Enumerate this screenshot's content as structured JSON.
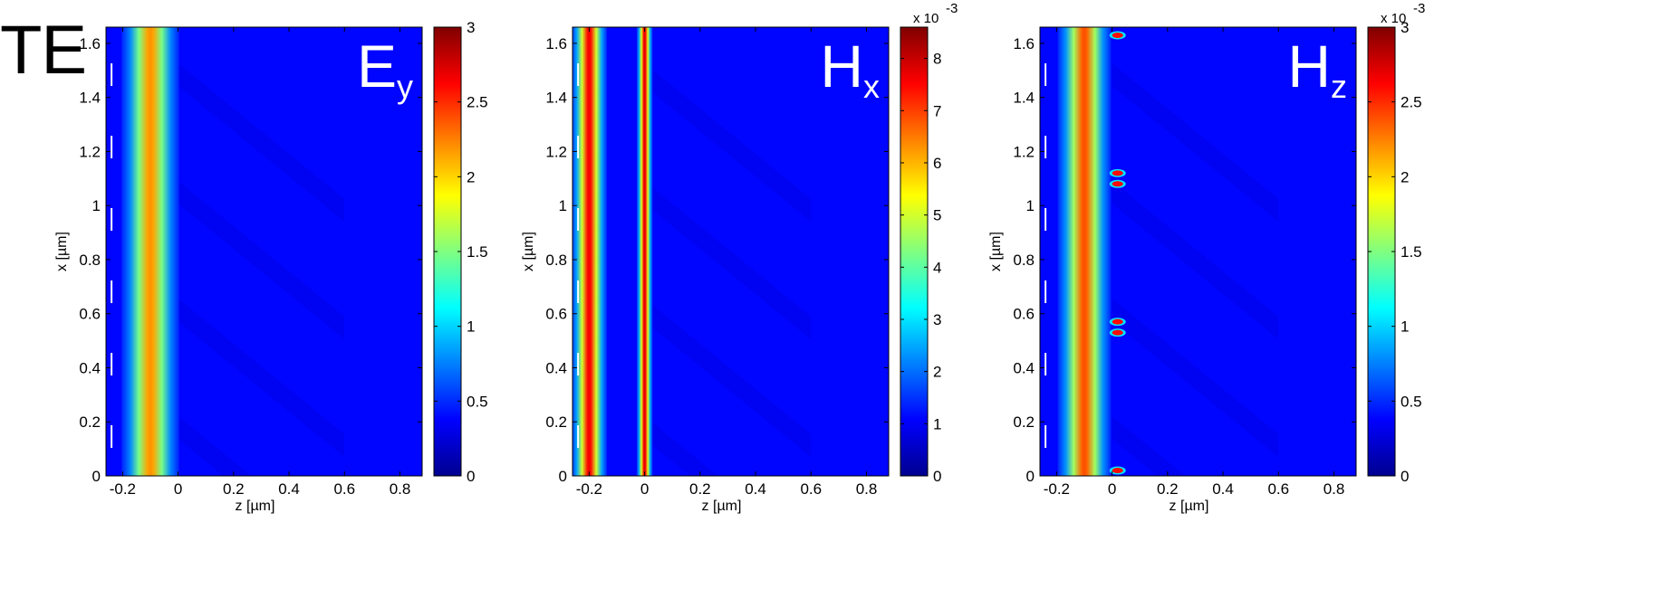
{
  "figure_label": "TE",
  "colormap": [
    "#00008F",
    "#0000FF",
    "#0080FF",
    "#00FFFF",
    "#80FF80",
    "#FFFF00",
    "#FF8000",
    "#FF0000",
    "#800000"
  ],
  "chart_data": [
    {
      "type": "heatmap",
      "field_main": "E",
      "field_sub": "y",
      "xlabel": "z [µm]",
      "ylabel": "x [µm]",
      "xlim": [
        -0.26,
        0.88
      ],
      "ylim": [
        0,
        1.66
      ],
      "xticks": [
        -0.2,
        0,
        0.2,
        0.4,
        0.6,
        0.8
      ],
      "xtick_labels": [
        "-0.2",
        "0",
        "0.2",
        "0.4",
        "0.6",
        "0.8"
      ],
      "yticks": [
        0,
        0.2,
        0.4,
        0.6,
        0.8,
        1,
        1.2,
        1.4,
        1.6
      ],
      "ytick_labels": [
        "0",
        "0.2",
        "0.4",
        "0.6",
        "0.8",
        "1",
        "1.2",
        "1.4",
        "1.6"
      ],
      "colorbar": {
        "min": 0,
        "max": 3,
        "ticks": [
          0,
          0.5,
          1,
          1.5,
          2,
          2.5,
          3
        ],
        "tick_labels": [
          "0",
          "0.5",
          "1",
          "1.5",
          "2",
          "2.5",
          "3"
        ],
        "exponent": ""
      },
      "bands": [
        {
          "z_center": -0.1,
          "width": 0.065,
          "value": 2.2
        }
      ],
      "hotspots": []
    },
    {
      "type": "heatmap",
      "field_main": "H",
      "field_sub": "x",
      "xlabel": "z [µm]",
      "ylabel": "x [µm]",
      "xlim": [
        -0.26,
        0.88
      ],
      "ylim": [
        0,
        1.66
      ],
      "xticks": [
        -0.2,
        0,
        0.2,
        0.4,
        0.6,
        0.8
      ],
      "xtick_labels": [
        "-0.2",
        "0",
        "0.2",
        "0.4",
        "0.6",
        "0.8"
      ],
      "yticks": [
        0,
        0.2,
        0.4,
        0.6,
        0.8,
        1,
        1.2,
        1.4,
        1.6
      ],
      "ytick_labels": [
        "0",
        "0.2",
        "0.4",
        "0.6",
        "0.8",
        "1",
        "1.2",
        "1.4",
        "1.6"
      ],
      "colorbar": {
        "min": 0,
        "max": 8.6,
        "ticks": [
          0,
          1,
          2,
          3,
          4,
          5,
          6,
          7,
          8
        ],
        "tick_labels": [
          "0",
          "1",
          "2",
          "3",
          "4",
          "5",
          "6",
          "7",
          "8"
        ],
        "exponent": "x 10",
        "exponent_power": "-3"
      },
      "bands": [
        {
          "z_center": -0.2,
          "width": 0.04,
          "value": 7.6
        },
        {
          "z_center": 0.0,
          "width": 0.018,
          "value": 7.8
        }
      ],
      "hotspots": []
    },
    {
      "type": "heatmap",
      "field_main": "H",
      "field_sub": "z",
      "xlabel": "z [µm]",
      "ylabel": "x [µm]",
      "xlim": [
        -0.26,
        0.88
      ],
      "ylim": [
        0,
        1.66
      ],
      "xticks": [
        -0.2,
        0,
        0.2,
        0.4,
        0.6,
        0.8
      ],
      "xtick_labels": [
        "-0.2",
        "0",
        "0.2",
        "0.4",
        "0.6",
        "0.8"
      ],
      "yticks": [
        0,
        0.2,
        0.4,
        0.6,
        0.8,
        1,
        1.2,
        1.4,
        1.6
      ],
      "ytick_labels": [
        "0",
        "0.2",
        "0.4",
        "0.6",
        "0.8",
        "1",
        "1.2",
        "1.4",
        "1.6"
      ],
      "colorbar": {
        "min": 0,
        "max": 3,
        "ticks": [
          0,
          0.5,
          1,
          1.5,
          2,
          2.5,
          3
        ],
        "tick_labels": [
          "0",
          "0.5",
          "1",
          "1.5",
          "2",
          "2.5",
          "3"
        ],
        "exponent": "x 10",
        "exponent_power": "-3"
      },
      "bands": [
        {
          "z_center": -0.1,
          "width": 0.06,
          "value": 2.4
        }
      ],
      "hotspots": [
        {
          "z": 0.02,
          "x": 1.63,
          "value": 2.6
        },
        {
          "z": 0.02,
          "x": 1.12,
          "value": 2.6
        },
        {
          "z": 0.02,
          "x": 1.08,
          "value": 2.6
        },
        {
          "z": 0.02,
          "x": 0.57,
          "value": 2.6
        },
        {
          "z": 0.02,
          "x": 0.53,
          "value": 2.6
        },
        {
          "z": 0.02,
          "x": 0.02,
          "value": 2.6
        }
      ]
    }
  ]
}
